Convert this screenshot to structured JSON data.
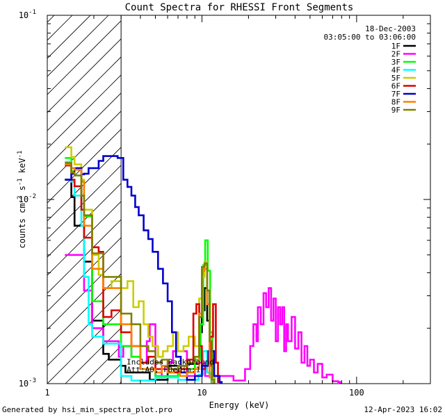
{
  "chart_data": {
    "type": "line",
    "title": "Count Spectra for RHESSI Front Segments",
    "xlabel": "Energy (keV)",
    "ylabel_parts": [
      "counts cm",
      "-2",
      " s",
      "-1",
      " keV",
      "-1"
    ],
    "xscale": "log",
    "yscale": "log",
    "xlim": [
      1,
      300
    ],
    "ylim": [
      0.001,
      0.1
    ],
    "x_tick_labels": [
      {
        "value": 1,
        "label": "1"
      },
      {
        "value": 10,
        "label": "10"
      },
      {
        "value": 100,
        "label": "100"
      }
    ],
    "y_tick_labels": [
      {
        "value": 0.001,
        "base": "10",
        "exp": "-3"
      },
      {
        "value": 0.01,
        "base": "10",
        "exp": "-2"
      },
      {
        "value": 0.1,
        "base": "10",
        "exp": "-1"
      }
    ],
    "date_label": "18-Dec-2003",
    "time_range_label": "03:05:00 to 03:06:00",
    "hatched_region_max_x": 3,
    "annotation_lines": [
      "Includes Background",
      "Att:A0, FDecim:1"
    ],
    "annotation_x": 3.0,
    "annotation_y": 0.00127,
    "series": [
      {
        "name": "1F",
        "color": "#000000",
        "points": [
          [
            1.3,
            0.0128
          ],
          [
            1.43,
            0.0103
          ],
          [
            1.5,
            0.0072
          ],
          [
            1.66,
            0.0072
          ],
          [
            1.73,
            0.0046
          ],
          [
            1.85,
            0.0046
          ],
          [
            1.95,
            0.0022
          ],
          [
            2.15,
            0.0022
          ],
          [
            2.3,
            0.00145
          ],
          [
            2.5,
            0.00135
          ],
          [
            3.0,
            0.00125
          ],
          [
            3.2,
            0.00115
          ],
          [
            4.0,
            0.00115
          ],
          [
            4.6,
            0.00105
          ],
          [
            6.0,
            0.00125
          ],
          [
            8.0,
            0.00128
          ],
          [
            9.6,
            0.0019
          ],
          [
            10.0,
            0.0025
          ],
          [
            10.4,
            0.0033
          ],
          [
            10.8,
            0.0022
          ],
          [
            11.2,
            0.0014
          ],
          [
            11.6,
            0.00108
          ]
        ]
      },
      {
        "name": "2F",
        "color": "#ff00ff",
        "points": [
          [
            1.3,
            0.005
          ],
          [
            1.55,
            0.005
          ],
          [
            1.73,
            0.0032
          ],
          [
            1.85,
            0.0032
          ],
          [
            1.95,
            0.002
          ],
          [
            2.15,
            0.002
          ],
          [
            2.3,
            0.0017
          ],
          [
            2.6,
            0.0017
          ],
          [
            2.9,
            0.0014
          ],
          [
            3.1,
            0.0016
          ],
          [
            3.5,
            0.0014
          ],
          [
            4.0,
            0.0013
          ],
          [
            4.4,
            0.0017
          ],
          [
            4.6,
            0.0021
          ],
          [
            5.0,
            0.0011
          ],
          [
            5.5,
            0.0012
          ],
          [
            6.0,
            0.0013
          ],
          [
            6.5,
            0.0015
          ],
          [
            8.0,
            0.0011
          ],
          [
            9.0,
            0.0013
          ],
          [
            10.5,
            0.0011
          ],
          [
            14,
            0.0011
          ],
          [
            16,
            0.00104
          ],
          [
            19,
            0.0012
          ],
          [
            20.5,
            0.0016
          ],
          [
            21.5,
            0.0021
          ],
          [
            22.5,
            0.0017
          ],
          [
            23,
            0.0026
          ],
          [
            24,
            0.0021
          ],
          [
            25,
            0.0031
          ],
          [
            26,
            0.0026
          ],
          [
            27,
            0.0033
          ],
          [
            28,
            0.0022
          ],
          [
            29,
            0.0029
          ],
          [
            30,
            0.0017
          ],
          [
            31,
            0.0026
          ],
          [
            32,
            0.0021
          ],
          [
            33,
            0.0026
          ],
          [
            34,
            0.0015
          ],
          [
            35,
            0.0021
          ],
          [
            36,
            0.0017
          ],
          [
            38,
            0.0023
          ],
          [
            40,
            0.00155
          ],
          [
            42,
            0.0019
          ],
          [
            44,
            0.0013
          ],
          [
            46,
            0.0016
          ],
          [
            48,
            0.00125
          ],
          [
            50,
            0.00135
          ],
          [
            53,
            0.00115
          ],
          [
            56,
            0.00128
          ],
          [
            60,
            0.00108
          ],
          [
            64,
            0.00112
          ],
          [
            70,
            0.00103
          ],
          [
            76,
            0.00102
          ]
        ]
      },
      {
        "name": "3F",
        "color": "#00ff00",
        "points": [
          [
            1.3,
            0.0168
          ],
          [
            1.43,
            0.0142
          ],
          [
            1.5,
            0.0135
          ],
          [
            1.66,
            0.0105
          ],
          [
            1.73,
            0.0081
          ],
          [
            1.85,
            0.0081
          ],
          [
            1.95,
            0.0028
          ],
          [
            2.15,
            0.0028
          ],
          [
            2.3,
            0.0021
          ],
          [
            2.6,
            0.0021
          ],
          [
            3.0,
            0.0016
          ],
          [
            3.5,
            0.0014
          ],
          [
            4.0,
            0.0012
          ],
          [
            5.0,
            0.0011
          ],
          [
            7.0,
            0.0012
          ],
          [
            9.0,
            0.00135
          ],
          [
            9.8,
            0.0021
          ],
          [
            10.2,
            0.0044
          ],
          [
            10.5,
            0.006
          ],
          [
            10.9,
            0.0041
          ],
          [
            11.3,
            0.0019
          ],
          [
            11.7,
            0.0011
          ]
        ]
      },
      {
        "name": "4F",
        "color": "#00ffff",
        "points": [
          [
            1.3,
            0.016
          ],
          [
            1.43,
            0.0125
          ],
          [
            1.5,
            0.0105
          ],
          [
            1.66,
            0.0072
          ],
          [
            1.73,
            0.0038
          ],
          [
            1.85,
            0.0021
          ],
          [
            1.95,
            0.0018
          ],
          [
            2.15,
            0.0018
          ],
          [
            2.3,
            0.00165
          ],
          [
            2.6,
            0.00165
          ],
          [
            3.0,
            0.0011
          ],
          [
            3.5,
            0.00104
          ],
          [
            5.0,
            0.00108
          ],
          [
            7.0,
            0.00105
          ],
          [
            9.5,
            0.00112
          ],
          [
            10.2,
            0.0015
          ],
          [
            10.8,
            0.00115
          ],
          [
            11.5,
            0.00102
          ]
        ]
      },
      {
        "name": "5F",
        "color": "#cccc00",
        "points": [
          [
            1.3,
            0.0192
          ],
          [
            1.43,
            0.017
          ],
          [
            1.5,
            0.0155
          ],
          [
            1.66,
            0.0128
          ],
          [
            1.73,
            0.0088
          ],
          [
            1.85,
            0.0088
          ],
          [
            1.95,
            0.005
          ],
          [
            2.15,
            0.0039
          ],
          [
            2.3,
            0.0033
          ],
          [
            2.6,
            0.0036
          ],
          [
            3.0,
            0.0033
          ],
          [
            3.3,
            0.0036
          ],
          [
            3.6,
            0.0026
          ],
          [
            3.9,
            0.0028
          ],
          [
            4.2,
            0.0021
          ],
          [
            4.5,
            0.0018
          ],
          [
            4.8,
            0.0016
          ],
          [
            5.2,
            0.0014
          ],
          [
            5.6,
            0.0015
          ],
          [
            6.0,
            0.0016
          ],
          [
            6.5,
            0.0019
          ],
          [
            7.0,
            0.0015
          ],
          [
            7.6,
            0.0016
          ],
          [
            8.2,
            0.0018
          ],
          [
            9.0,
            0.0016
          ],
          [
            9.6,
            0.0029
          ],
          [
            10.0,
            0.0038
          ],
          [
            10.4,
            0.0046
          ],
          [
            10.8,
            0.0032
          ],
          [
            11.2,
            0.0017
          ],
          [
            11.6,
            0.00108
          ]
        ]
      },
      {
        "name": "6F",
        "color": "#dd0000",
        "points": [
          [
            1.3,
            0.0153
          ],
          [
            1.43,
            0.0128
          ],
          [
            1.5,
            0.0118
          ],
          [
            1.66,
            0.0088
          ],
          [
            1.73,
            0.0062
          ],
          [
            1.85,
            0.0062
          ],
          [
            1.95,
            0.0055
          ],
          [
            2.15,
            0.0052
          ],
          [
            2.3,
            0.0023
          ],
          [
            2.6,
            0.0025
          ],
          [
            3.0,
            0.0019
          ],
          [
            3.5,
            0.0016
          ],
          [
            4.0,
            0.0013
          ],
          [
            4.5,
            0.0014
          ],
          [
            5.0,
            0.0012
          ],
          [
            5.5,
            0.00125
          ],
          [
            6.0,
            0.00115
          ],
          [
            7.0,
            0.0012
          ],
          [
            8.0,
            0.00135
          ],
          [
            8.8,
            0.0024
          ],
          [
            9.2,
            0.0027
          ],
          [
            9.6,
            0.0016
          ],
          [
            10.0,
            0.0012
          ],
          [
            10.5,
            0.00125
          ],
          [
            11.3,
            0.0018
          ],
          [
            11.8,
            0.0027
          ],
          [
            12.3,
            0.0013
          ],
          [
            12.7,
            0.00102
          ]
        ]
      },
      {
        "name": "7F",
        "color": "#0000cc",
        "points": [
          [
            1.3,
            0.0128
          ],
          [
            1.43,
            0.0138
          ],
          [
            1.5,
            0.0148
          ],
          [
            1.66,
            0.0137
          ],
          [
            1.73,
            0.0138
          ],
          [
            1.85,
            0.0148
          ],
          [
            1.95,
            0.0148
          ],
          [
            2.15,
            0.0162
          ],
          [
            2.3,
            0.0172
          ],
          [
            2.6,
            0.0172
          ],
          [
            2.85,
            0.0168
          ],
          [
            3.1,
            0.0128
          ],
          [
            3.3,
            0.0117
          ],
          [
            3.5,
            0.0105
          ],
          [
            3.7,
            0.0091
          ],
          [
            3.9,
            0.0082
          ],
          [
            4.2,
            0.0068
          ],
          [
            4.5,
            0.0061
          ],
          [
            4.8,
            0.0052
          ],
          [
            5.2,
            0.0042
          ],
          [
            5.6,
            0.0035
          ],
          [
            6.0,
            0.0028
          ],
          [
            6.4,
            0.0019
          ],
          [
            6.8,
            0.0014
          ],
          [
            7.3,
            0.00115
          ],
          [
            8.0,
            0.00105
          ],
          [
            9.0,
            0.0011
          ],
          [
            10.0,
            0.00125
          ],
          [
            11.0,
            0.0015
          ],
          [
            12.0,
            0.0011
          ],
          [
            13.0,
            0.00102
          ]
        ]
      },
      {
        "name": "8F",
        "color": "#ff7f00",
        "points": [
          [
            1.3,
            0.0155
          ],
          [
            1.43,
            0.0148
          ],
          [
            1.5,
            0.0145
          ],
          [
            1.66,
            0.0125
          ],
          [
            1.73,
            0.0072
          ],
          [
            1.85,
            0.0072
          ],
          [
            1.95,
            0.0042
          ],
          [
            2.15,
            0.0042
          ],
          [
            2.3,
            0.0033
          ],
          [
            2.6,
            0.0033
          ],
          [
            3.0,
            0.0021
          ],
          [
            3.5,
            0.0016
          ],
          [
            4.0,
            0.0012
          ],
          [
            4.5,
            0.0012
          ],
          [
            5.0,
            0.00115
          ],
          [
            5.5,
            0.00125
          ],
          [
            6.0,
            0.00115
          ],
          [
            6.6,
            0.0012
          ],
          [
            7.2,
            0.0011
          ],
          [
            8.0,
            0.00115
          ],
          [
            9.0,
            0.0012
          ],
          [
            9.6,
            0.0024
          ],
          [
            10.0,
            0.0041
          ],
          [
            10.4,
            0.0042
          ],
          [
            10.8,
            0.0027
          ],
          [
            11.2,
            0.00108
          ]
        ]
      },
      {
        "name": "9F",
        "color": "#808000",
        "points": [
          [
            1.3,
            0.0158
          ],
          [
            1.43,
            0.014
          ],
          [
            1.5,
            0.0135
          ],
          [
            1.66,
            0.0105
          ],
          [
            1.73,
            0.0082
          ],
          [
            1.85,
            0.0082
          ],
          [
            1.95,
            0.0051
          ],
          [
            2.15,
            0.0051
          ],
          [
            2.3,
            0.0038
          ],
          [
            2.6,
            0.0038
          ],
          [
            3.0,
            0.0024
          ],
          [
            3.5,
            0.0021
          ],
          [
            4.0,
            0.0016
          ],
          [
            4.5,
            0.0015
          ],
          [
            5.0,
            0.0013
          ],
          [
            5.5,
            0.00135
          ],
          [
            6.0,
            0.0012
          ],
          [
            7.0,
            0.00125
          ],
          [
            8.0,
            0.0013
          ],
          [
            9.0,
            0.0014
          ],
          [
            9.6,
            0.0023
          ],
          [
            10.0,
            0.0043
          ],
          [
            10.4,
            0.0045
          ],
          [
            10.8,
            0.0032
          ],
          [
            11.2,
            0.0017
          ],
          [
            11.6,
            0.00105
          ]
        ]
      }
    ]
  },
  "footer": {
    "left": "Generated by hsi_min_spectra_plot.pro",
    "right": "12-Apr-2023 16:02"
  }
}
